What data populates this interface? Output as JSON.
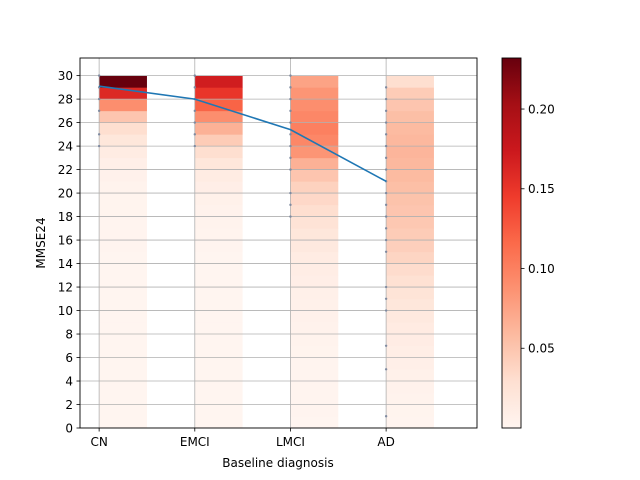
{
  "chart_data": {
    "type": "heatmap",
    "title": "",
    "xlabel": "Baseline diagnosis",
    "ylabel": "MMSE24",
    "categories": [
      "CN",
      "EMCI",
      "LMCI",
      "AD"
    ],
    "xlim": [
      -0.2,
      3.95
    ],
    "ylim": [
      0,
      31.5
    ],
    "yticks": [
      0,
      2,
      4,
      6,
      8,
      10,
      12,
      14,
      16,
      18,
      20,
      22,
      24,
      26,
      28,
      30
    ],
    "grid": true,
    "colormap": "Reds",
    "colorbar": {
      "range": [
        0,
        0.232
      ],
      "ticks": [
        0.05,
        0.1,
        0.15,
        0.2
      ],
      "tick_labels": [
        "0.05",
        "0.10",
        "0.15",
        "0.20"
      ]
    },
    "proportions": {
      "CN": [
        0,
        0,
        0,
        0,
        0,
        0,
        0,
        0,
        0,
        0,
        0,
        0,
        0,
        0,
        0,
        0,
        0.001,
        0.001,
        0.001,
        0.002,
        0.002,
        0.003,
        0.005,
        0.008,
        0.013,
        0.02,
        0.03,
        0.05,
        0.09,
        0.16,
        0.232
      ],
      "EMCI": [
        0,
        0,
        0,
        0,
        0,
        0,
        0,
        0,
        0,
        0,
        0,
        0,
        0,
        0,
        0,
        0,
        0.001,
        0.002,
        0.003,
        0.004,
        0.006,
        0.009,
        0.013,
        0.02,
        0.03,
        0.045,
        0.065,
        0.09,
        0.12,
        0.15,
        0.17
      ],
      "LMCI": [
        0,
        0,
        0.001,
        0.001,
        0.001,
        0.001,
        0.001,
        0.002,
        0.003,
        0.004,
        0.005,
        0.006,
        0.007,
        0.009,
        0.011,
        0.013,
        0.016,
        0.02,
        0.025,
        0.03,
        0.035,
        0.04,
        0.05,
        0.065,
        0.085,
        0.095,
        0.1,
        0.095,
        0.09,
        0.085,
        0.075
      ],
      "AD": [
        0,
        0.001,
        0.002,
        0.003,
        0.004,
        0.006,
        0.008,
        0.01,
        0.012,
        0.014,
        0.016,
        0.02,
        0.024,
        0.028,
        0.032,
        0.038,
        0.042,
        0.045,
        0.048,
        0.05,
        0.052,
        0.055,
        0.058,
        0.06,
        0.062,
        0.06,
        0.058,
        0.055,
        0.05,
        0.045,
        0.03
      ]
    },
    "series": [
      {
        "x": [
          "CN",
          "EMCI",
          "LMCI",
          "AD"
        ],
        "values": [
          29.1,
          28.0,
          25.4,
          21.0
        ],
        "color": "#1f77b4"
      }
    ],
    "observed_scores": {
      "CN": [
        24,
        25,
        27,
        28,
        29,
        30
      ],
      "EMCI": [
        24,
        25,
        26,
        27,
        28,
        29,
        30
      ],
      "LMCI": [
        18,
        19,
        20,
        22,
        23,
        24,
        25,
        26,
        27,
        28,
        29,
        30
      ],
      "AD": [
        1,
        5,
        7,
        10,
        11,
        12,
        15,
        16,
        17,
        18,
        19,
        20,
        21,
        22,
        23,
        24,
        25,
        26,
        27,
        28,
        29
      ]
    }
  }
}
